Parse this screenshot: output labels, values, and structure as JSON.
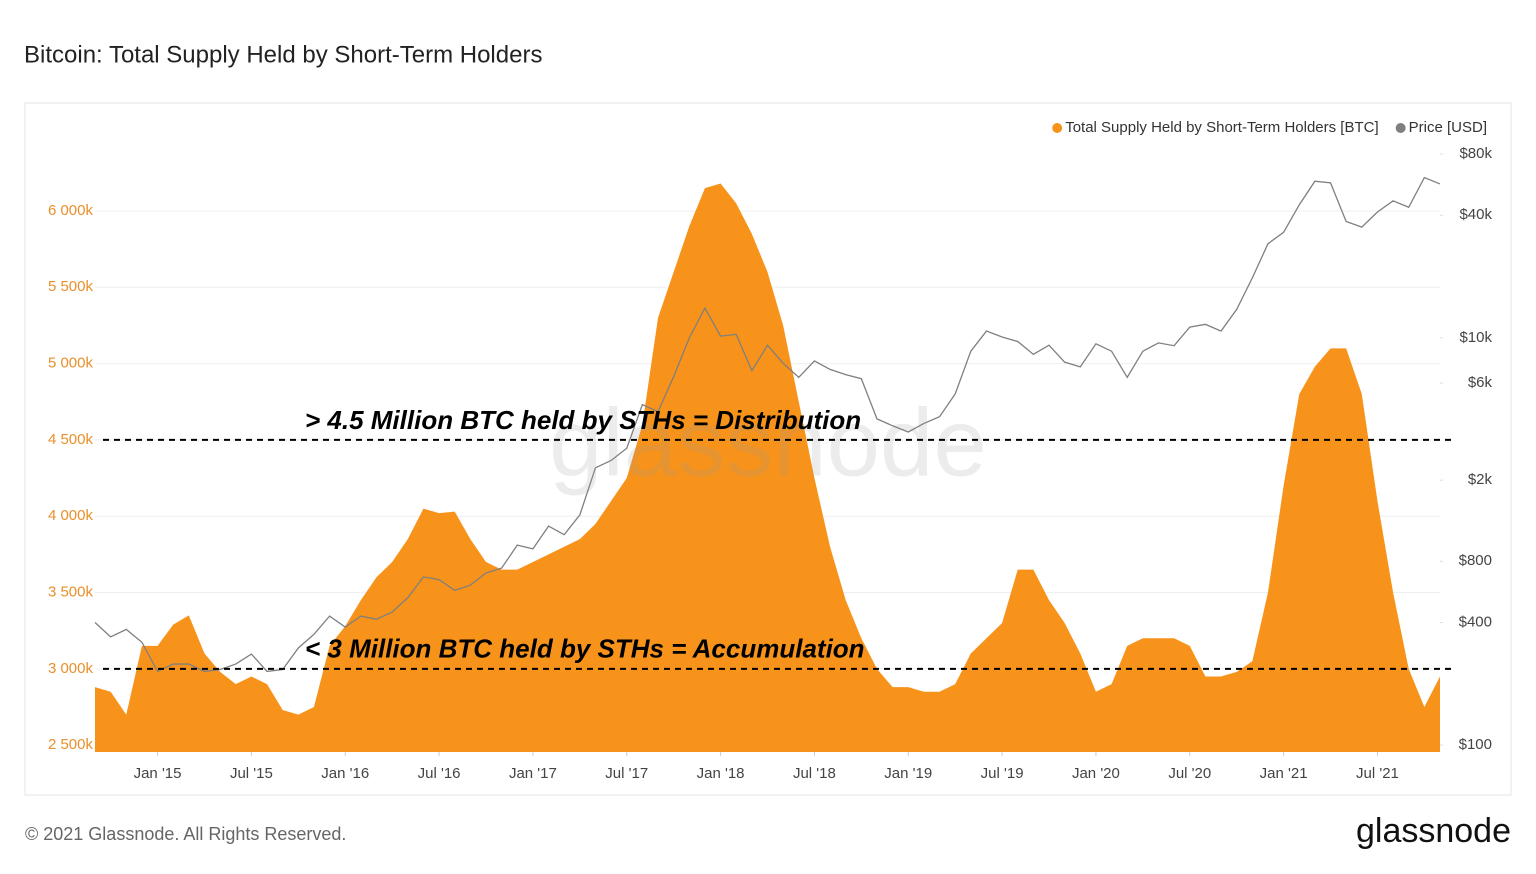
{
  "chart_data": {
    "type": "area",
    "title": "Bitcoin: Total Supply Held by Short-Term Holders",
    "watermark": "glassnode",
    "legend": "top-right",
    "grid": true,
    "x": [
      "2014-09",
      "2014-10",
      "2014-11",
      "2014-12",
      "2015-01",
      "2015-02",
      "2015-03",
      "2015-04",
      "2015-05",
      "2015-06",
      "2015-07",
      "2015-08",
      "2015-09",
      "2015-10",
      "2015-11",
      "2015-12",
      "2016-01",
      "2016-02",
      "2016-03",
      "2016-04",
      "2016-05",
      "2016-06",
      "2016-07",
      "2016-08",
      "2016-09",
      "2016-10",
      "2016-11",
      "2016-12",
      "2017-01",
      "2017-02",
      "2017-03",
      "2017-04",
      "2017-05",
      "2017-06",
      "2017-07",
      "2017-08",
      "2017-09",
      "2017-10",
      "2017-11",
      "2017-12",
      "2018-01",
      "2018-02",
      "2018-03",
      "2018-04",
      "2018-05",
      "2018-06",
      "2018-07",
      "2018-08",
      "2018-09",
      "2018-10",
      "2018-11",
      "2018-12",
      "2019-01",
      "2019-02",
      "2019-03",
      "2019-04",
      "2019-05",
      "2019-06",
      "2019-07",
      "2019-08",
      "2019-09",
      "2019-10",
      "2019-11",
      "2019-12",
      "2020-01",
      "2020-02",
      "2020-03",
      "2020-04",
      "2020-05",
      "2020-06",
      "2020-07",
      "2020-08",
      "2020-09",
      "2020-10",
      "2020-11",
      "2020-12",
      "2021-01",
      "2021-02",
      "2021-03",
      "2021-04",
      "2021-05",
      "2021-06",
      "2021-07",
      "2021-08",
      "2021-09",
      "2021-10",
      "2021-11"
    ],
    "series": [
      {
        "name": "Total Supply Held by Short-Term Holders [BTC]",
        "type": "area",
        "color": "#f7931a",
        "values": [
          2880000,
          2850000,
          2700000,
          3150000,
          3150000,
          3290000,
          3350000,
          3100000,
          2980000,
          2900000,
          2950000,
          2900000,
          2730000,
          2700000,
          2750000,
          3150000,
          3280000,
          3450000,
          3600000,
          3700000,
          3850000,
          4050000,
          4020000,
          4030000,
          3850000,
          3700000,
          3650000,
          3650000,
          3700000,
          3750000,
          3800000,
          3850000,
          3950000,
          4100000,
          4250000,
          4600000,
          5300000,
          5600000,
          5900000,
          6150000,
          6180000,
          6050000,
          5850000,
          5600000,
          5250000,
          4750000,
          4250000,
          3800000,
          3450000,
          3200000,
          3000000,
          2880000,
          2880000,
          2850000,
          2850000,
          2900000,
          3100000,
          3200000,
          3300000,
          3650000,
          3650000,
          3450000,
          3300000,
          3100000,
          2850000,
          2900000,
          3150000,
          3200000,
          3200000,
          3200000,
          3150000,
          2950000,
          2950000,
          2980000,
          3050000,
          3500000,
          4200000,
          4800000,
          4980000,
          5100000,
          5100000,
          4800000,
          4100000,
          3500000,
          3000000,
          2750000,
          2950000
        ]
      },
      {
        "name": "Price [USD]",
        "type": "line",
        "axis": "y2",
        "color": "#7f7f7f",
        "values": [
          400,
          340,
          370,
          320,
          230,
          250,
          250,
          230,
          235,
          250,
          280,
          230,
          235,
          300,
          350,
          430,
          380,
          430,
          415,
          450,
          530,
          670,
          650,
          575,
          610,
          700,
          740,
          960,
          920,
          1190,
          1080,
          1350,
          2300,
          2500,
          2870,
          4700,
          4340,
          6450,
          10000,
          14000,
          10200,
          10400,
          6900,
          9200,
          7500,
          6400,
          7700,
          7000,
          6600,
          6300,
          4000,
          3700,
          3450,
          3800,
          4100,
          5300,
          8600,
          10800,
          10100,
          9600,
          8300,
          9200,
          7600,
          7200,
          9350,
          8600,
          6400,
          8600,
          9450,
          9150,
          11300,
          11650,
          10800,
          13800,
          19700,
          29000,
          33000,
          45000,
          58800,
          57700,
          37300,
          35000,
          41500,
          47100,
          43800,
          61300,
          57000
        ]
      }
    ],
    "xlim": [
      "2014-09",
      "2021-11"
    ],
    "xticks": [
      {
        "value": "2015-01",
        "label": "Jan '15"
      },
      {
        "value": "2015-07",
        "label": "Jul '15"
      },
      {
        "value": "2016-01",
        "label": "Jan '16"
      },
      {
        "value": "2016-07",
        "label": "Jul '16"
      },
      {
        "value": "2017-01",
        "label": "Jan '17"
      },
      {
        "value": "2017-07",
        "label": "Jul '17"
      },
      {
        "value": "2018-01",
        "label": "Jan '18"
      },
      {
        "value": "2018-07",
        "label": "Jul '18"
      },
      {
        "value": "2019-01",
        "label": "Jan '19"
      },
      {
        "value": "2019-07",
        "label": "Jul '19"
      },
      {
        "value": "2020-01",
        "label": "Jan '20"
      },
      {
        "value": "2020-07",
        "label": "Jul '20"
      },
      {
        "value": "2021-01",
        "label": "Jan '21"
      },
      {
        "value": "2021-07",
        "label": "Jul '21"
      }
    ],
    "ylim": [
      2455000,
      6465000
    ],
    "yticks": [
      {
        "value": 2500000,
        "label": "2 500k"
      },
      {
        "value": 3000000,
        "label": "3 000k"
      },
      {
        "value": 3500000,
        "label": "3 500k"
      },
      {
        "value": 4000000,
        "label": "4 000k"
      },
      {
        "value": 4500000,
        "label": "4 500k"
      },
      {
        "value": 5000000,
        "label": "5 000k"
      },
      {
        "value": 5500000,
        "label": "5 500k"
      },
      {
        "value": 6000000,
        "label": "6 000k"
      }
    ],
    "y2log": true,
    "y2lim": [
      92.5,
      93700
    ],
    "y2ticks": [
      {
        "value": 100,
        "label": "$100"
      },
      {
        "value": 400,
        "label": "$400"
      },
      {
        "value": 800,
        "label": "$800"
      },
      {
        "value": 2000,
        "label": "$2k"
      },
      {
        "value": 6000,
        "label": "$6k"
      },
      {
        "value": 10000,
        "label": "$10k"
      },
      {
        "value": 40000,
        "label": "$40k"
      },
      {
        "value": 80000,
        "label": "$80k"
      }
    ],
    "annotations": [
      {
        "text": "> 4.5 Million BTC held by STHs = Distribution",
        "y": 4500000
      },
      {
        "text": "< 3 Million BTC held by STHs = Accumulation",
        "y": 3000000
      }
    ]
  },
  "footer": {
    "copyright": "© 2021 Glassnode. All Rights Reserved.",
    "logo": "glassnode"
  }
}
